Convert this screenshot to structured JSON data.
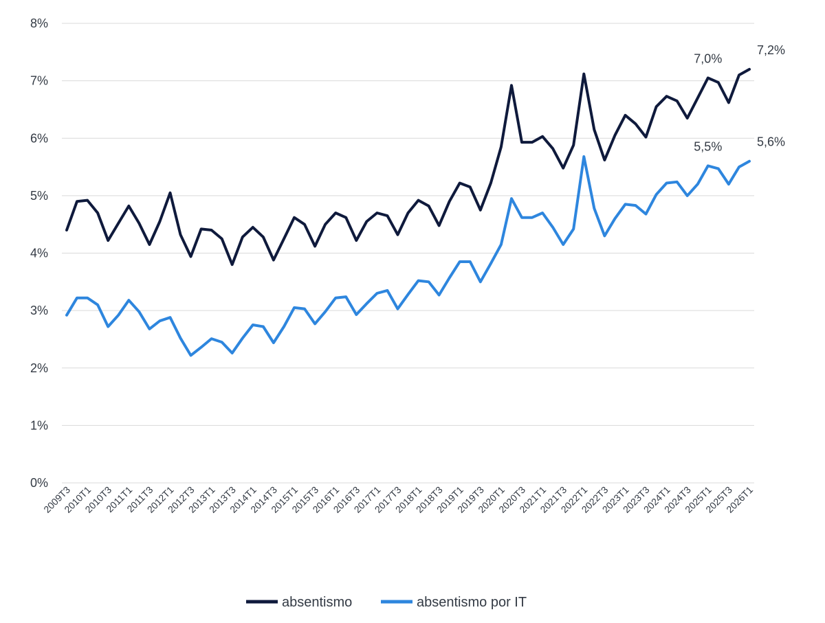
{
  "chart_data": {
    "type": "line",
    "title": "",
    "xlabel": "",
    "ylabel": "",
    "ylim": [
      0,
      8
    ],
    "y_ticks": [
      "0%",
      "1%",
      "2%",
      "3%",
      "4%",
      "5%",
      "6%",
      "7%",
      "8%"
    ],
    "grid": true,
    "legend_position": "bottom",
    "x": [
      "2009T3",
      "2009T4",
      "2010T1",
      "2010T2",
      "2010T3",
      "2010T4",
      "2011T1",
      "2011T2",
      "2011T3",
      "2011T4",
      "2012T1",
      "2012T2",
      "2012T3",
      "2012T4",
      "2013T1",
      "2013T2",
      "2013T3",
      "2013T4",
      "2014T1",
      "2014T2",
      "2014T3",
      "2014T4",
      "2015T1",
      "2015T2",
      "2015T3",
      "2015T4",
      "2016T1",
      "2016T2",
      "2016T3",
      "2016T4",
      "2017T1",
      "2017T2",
      "2017T3",
      "2017T4",
      "2018T1",
      "2018T2",
      "2018T3",
      "2018T4",
      "2019T1",
      "2019T2",
      "2019T3",
      "2019T4",
      "2020T1",
      "2020T2",
      "2020T3",
      "2020T4",
      "2021T1",
      "2021T2",
      "2021T3",
      "2021T4",
      "2022T1",
      "2022T2",
      "2022T3",
      "2022T4",
      "2023T1",
      "2023T2",
      "2023T3",
      "2023T4",
      "2024T1",
      "2024T2",
      "2024T3",
      "2024T4",
      "2025T1",
      "2025T2",
      "2025T3",
      "2025T4",
      "2026T1"
    ],
    "x_tick_labels": [
      "2009T3",
      "2010T1",
      "2010T3",
      "2011T1",
      "2011T3",
      "2012T1",
      "2012T3",
      "2013T1",
      "2013T3",
      "2014T1",
      "2014T3",
      "2015T1",
      "2015T3",
      "2016T1",
      "2016T3",
      "2017T1",
      "2017T3",
      "2018T1",
      "2018T3",
      "2019T1",
      "2019T3",
      "2020T1",
      "2020T3",
      "2021T1",
      "2021T3",
      "2022T1",
      "2022T3",
      "2023T1",
      "2023T3",
      "2024T1",
      "2024T3",
      "2025T1",
      "2025T3",
      "2026T1"
    ],
    "series": [
      {
        "name": "absentismo",
        "color": "#0f1a3c",
        "values": [
          4.4,
          4.9,
          4.92,
          4.7,
          4.22,
          4.52,
          4.82,
          4.52,
          4.15,
          4.55,
          5.05,
          4.32,
          3.94,
          4.42,
          4.4,
          4.25,
          3.8,
          4.28,
          4.45,
          4.28,
          3.88,
          4.25,
          4.62,
          4.5,
          4.12,
          4.5,
          4.7,
          4.62,
          4.22,
          4.55,
          4.7,
          4.65,
          4.32,
          4.7,
          4.92,
          4.82,
          4.48,
          4.9,
          5.22,
          5.15,
          4.75,
          5.22,
          5.85,
          6.92,
          5.93,
          5.93,
          6.03,
          5.82,
          5.48,
          5.88,
          7.12,
          6.15,
          5.62,
          6.05,
          6.4,
          6.25,
          6.02,
          6.55,
          6.73,
          6.65,
          6.35,
          6.7,
          7.05,
          6.97,
          6.62,
          7.1,
          7.2
        ]
      },
      {
        "name": "absentismo por IT",
        "color": "#2e86de",
        "values": [
          2.92,
          3.22,
          3.22,
          3.1,
          2.72,
          2.92,
          3.18,
          2.98,
          2.68,
          2.82,
          2.88,
          2.52,
          2.22,
          2.36,
          2.51,
          2.45,
          2.26,
          2.52,
          2.75,
          2.72,
          2.44,
          2.72,
          3.05,
          3.03,
          2.77,
          2.98,
          3.22,
          3.24,
          2.93,
          3.12,
          3.3,
          3.35,
          3.03,
          3.28,
          3.52,
          3.5,
          3.27,
          3.57,
          3.85,
          3.85,
          3.5,
          3.82,
          4.15,
          4.95,
          4.62,
          4.62,
          4.7,
          4.45,
          4.15,
          4.42,
          5.68,
          4.78,
          4.3,
          4.6,
          4.85,
          4.83,
          4.68,
          5.02,
          5.22,
          5.24,
          5.0,
          5.2,
          5.52,
          5.47,
          5.2,
          5.5,
          5.6
        ]
      }
    ],
    "annotations": [
      {
        "series": 0,
        "index": 62,
        "text": "7,0%"
      },
      {
        "series": 0,
        "index": 66,
        "text": "7,2%"
      },
      {
        "series": 1,
        "index": 62,
        "text": "5,5%"
      },
      {
        "series": 1,
        "index": 66,
        "text": "5,6%"
      }
    ]
  }
}
